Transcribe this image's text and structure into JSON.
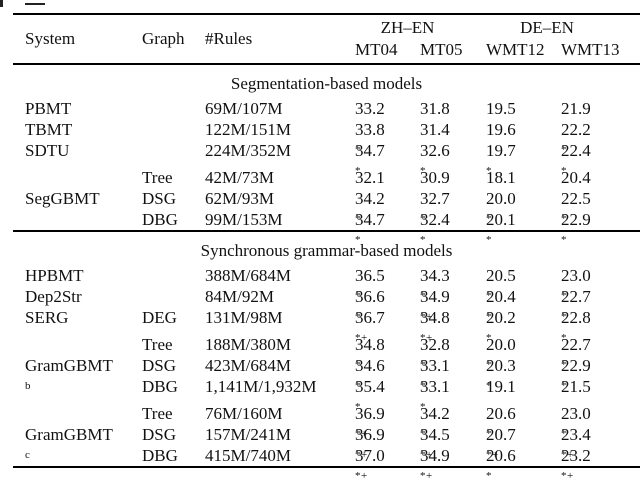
{
  "table": {
    "header": {
      "system": "System",
      "graph": "Graph",
      "rules": "#Rules",
      "zh_en": "ZH–EN",
      "de_en": "DE–EN",
      "mt04": "MT04",
      "mt05": "MT05",
      "wmt12": "WMT12",
      "wmt13": "WMT13"
    },
    "sections": [
      {
        "title": "Segmentation-based models",
        "blocks": [
          {
            "system": "PBMT",
            "sub": "",
            "gap": false,
            "rows": [
              {
                "graph": "",
                "rules": "69M/107M",
                "scores": [
                  [
                    "33.2",
                    ""
                  ],
                  [
                    "31.8",
                    ""
                  ],
                  [
                    "19.5",
                    ""
                  ],
                  [
                    "21.9",
                    ""
                  ]
                ]
              }
            ]
          },
          {
            "system": "TBMT",
            "sub": "",
            "gap": false,
            "rows": [
              {
                "graph": "",
                "rules": "122M/151M",
                "scores": [
                  [
                    "33.8",
                    "*"
                  ],
                  [
                    "31.4",
                    ""
                  ],
                  [
                    "19.6",
                    ""
                  ],
                  [
                    "22.2",
                    "*"
                  ]
                ]
              }
            ]
          },
          {
            "system": "SDTU",
            "sub": "",
            "gap": false,
            "rows": [
              {
                "graph": "",
                "rules": "224M/352M",
                "scores": [
                  [
                    "34.7",
                    "*"
                  ],
                  [
                    "32.6",
                    "*"
                  ],
                  [
                    "19.7",
                    "*"
                  ],
                  [
                    "22.4",
                    "*"
                  ]
                ]
              }
            ]
          },
          {
            "system": "SegGBMT",
            "sub": "",
            "gap": true,
            "rows": [
              {
                "graph": "Tree",
                "rules": "42M/73M",
                "scores": [
                  [
                    "32.1",
                    ""
                  ],
                  [
                    "30.9",
                    ""
                  ],
                  [
                    "18.1",
                    ""
                  ],
                  [
                    "20.4",
                    ""
                  ]
                ]
              },
              {
                "graph": "DSG",
                "rules": "62M/93M",
                "scores": [
                  [
                    "34.2",
                    "*"
                  ],
                  [
                    "32.7",
                    "*"
                  ],
                  [
                    "20.0",
                    "*"
                  ],
                  [
                    "22.5",
                    "*"
                  ]
                ]
              },
              {
                "graph": "DBG",
                "rules": "99M/153M",
                "scores": [
                  [
                    "34.7",
                    "*"
                  ],
                  [
                    "32.4",
                    "*"
                  ],
                  [
                    "20.1",
                    "*"
                  ],
                  [
                    "22.9",
                    "*"
                  ]
                ]
              }
            ]
          }
        ]
      },
      {
        "title": "Synchronous grammar-based models",
        "blocks": [
          {
            "system": "HPBMT",
            "sub": "",
            "gap": false,
            "rows": [
              {
                "graph": "",
                "rules": "388M/684M",
                "scores": [
                  [
                    "36.5",
                    "*"
                  ],
                  [
                    "34.3",
                    "*"
                  ],
                  [
                    "20.5",
                    "*"
                  ],
                  [
                    "23.0",
                    "*"
                  ]
                ]
              }
            ]
          },
          {
            "system": "Dep2Str",
            "sub": "",
            "gap": false,
            "rows": [
              {
                "graph": "",
                "rules": "84M/92M",
                "scores": [
                  [
                    "36.6",
                    "*"
                  ],
                  [
                    "34.9",
                    "*+"
                  ],
                  [
                    "20.4",
                    "*"
                  ],
                  [
                    "22.7",
                    "*"
                  ]
                ]
              }
            ]
          },
          {
            "system": "SERG",
            "sub": "",
            "gap": false,
            "rows": [
              {
                "graph": "DEG",
                "rules": "131M/98M",
                "scores": [
                  [
                    "36.7",
                    "*+"
                  ],
                  [
                    "34.8",
                    "*+"
                  ],
                  [
                    "20.2",
                    "*"
                  ],
                  [
                    "22.8",
                    "*"
                  ]
                ]
              }
            ]
          },
          {
            "system": "GramGBMT",
            "sub": "b",
            "gap": true,
            "rows": [
              {
                "graph": "Tree",
                "rules": "188M/380M",
                "scores": [
                  [
                    "34.8",
                    "*"
                  ],
                  [
                    "32.8",
                    "*"
                  ],
                  [
                    "20.0",
                    "*"
                  ],
                  [
                    "22.7",
                    "*"
                  ]
                ]
              },
              {
                "graph": "DSG",
                "rules": "423M/684M",
                "scores": [
                  [
                    "34.6",
                    "*"
                  ],
                  [
                    "33.1",
                    "*"
                  ],
                  [
                    "20.3",
                    "*"
                  ],
                  [
                    "22.9",
                    "*"
                  ]
                ]
              },
              {
                "graph": "DBG",
                "rules": "1,141M/1,932M",
                "scores": [
                  [
                    "35.4",
                    "*"
                  ],
                  [
                    "33.1",
                    "*"
                  ],
                  [
                    "19.1",
                    ""
                  ],
                  [
                    "21.5",
                    ""
                  ]
                ]
              }
            ]
          },
          {
            "system": "GramGBMT",
            "sub": "c",
            "gap": true,
            "rows": [
              {
                "graph": "Tree",
                "rules": "76M/160M",
                "scores": [
                  [
                    "36.9",
                    "*+"
                  ],
                  [
                    "34.2",
                    "*"
                  ],
                  [
                    "20.6",
                    "*"
                  ],
                  [
                    "23.0",
                    "*"
                  ]
                ]
              },
              {
                "graph": "DSG",
                "rules": "157M/241M",
                "scores": [
                  [
                    "36.9",
                    "*+"
                  ],
                  [
                    "34.5",
                    "*+"
                  ],
                  [
                    "20.7",
                    "*+"
                  ],
                  [
                    "23.4",
                    "*+"
                  ]
                ]
              },
              {
                "graph": "DBG",
                "rules": "415M/740M",
                "scores": [
                  [
                    "37.0",
                    "*+"
                  ],
                  [
                    "34.9",
                    "*+"
                  ],
                  [
                    "20.6",
                    "*"
                  ],
                  [
                    "23.2",
                    "*+"
                  ]
                ]
              }
            ]
          }
        ]
      }
    ]
  }
}
